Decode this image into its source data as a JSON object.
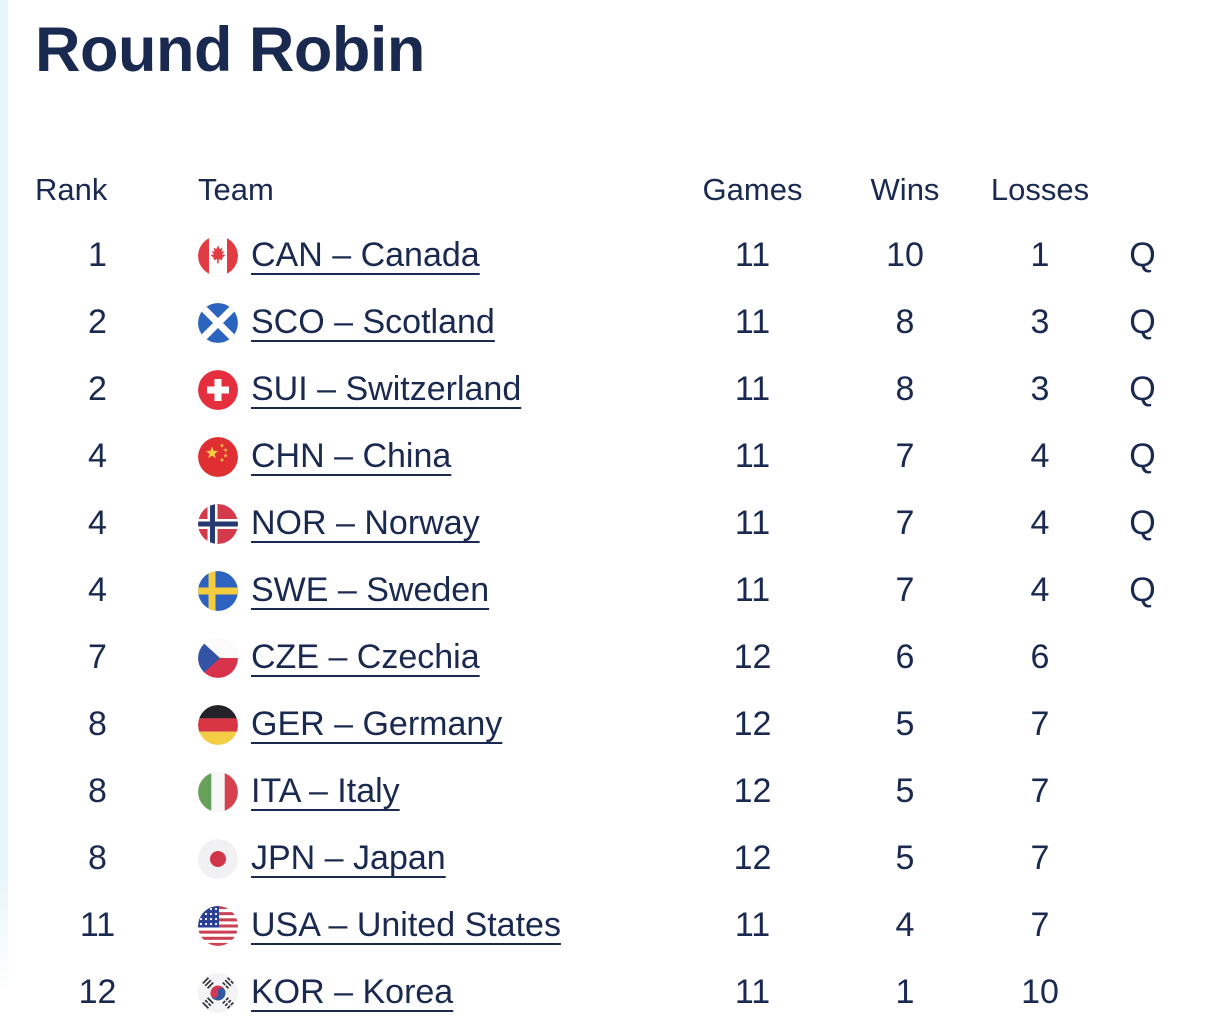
{
  "page": {
    "title": "Round Robin"
  },
  "colors": {
    "text_navy": "#1a2950",
    "left_edge_strip": "#e8f6f9",
    "link_underline": "#1a2950"
  },
  "table": {
    "headers": {
      "rank": "Rank",
      "team": "Team",
      "games": "Games",
      "wins": "Wins",
      "losses": "Losses",
      "qualified": ""
    },
    "qualified_marker": "Q",
    "rows": [
      {
        "rank": "1",
        "flag": "canada",
        "team_label": "CAN – Canada",
        "games": "11",
        "wins": "10",
        "losses": "1",
        "qualified": "Q"
      },
      {
        "rank": "2",
        "flag": "scotland",
        "team_label": "SCO – Scotland",
        "games": "11",
        "wins": "8",
        "losses": "3",
        "qualified": "Q"
      },
      {
        "rank": "2",
        "flag": "switzerland",
        "team_label": "SUI – Switzerland",
        "games": "11",
        "wins": "8",
        "losses": "3",
        "qualified": "Q"
      },
      {
        "rank": "4",
        "flag": "china",
        "team_label": "CHN – China",
        "games": "11",
        "wins": "7",
        "losses": "4",
        "qualified": "Q"
      },
      {
        "rank": "4",
        "flag": "norway",
        "team_label": "NOR – Norway",
        "games": "11",
        "wins": "7",
        "losses": "4",
        "qualified": "Q"
      },
      {
        "rank": "4",
        "flag": "sweden",
        "team_label": "SWE – Sweden",
        "games": "11",
        "wins": "7",
        "losses": "4",
        "qualified": "Q"
      },
      {
        "rank": "7",
        "flag": "czechia",
        "team_label": "CZE – Czechia",
        "games": "12",
        "wins": "6",
        "losses": "6",
        "qualified": ""
      },
      {
        "rank": "8",
        "flag": "germany",
        "team_label": "GER – Germany",
        "games": "12",
        "wins": "5",
        "losses": "7",
        "qualified": ""
      },
      {
        "rank": "8",
        "flag": "italy",
        "team_label": "ITA – Italy",
        "games": "12",
        "wins": "5",
        "losses": "7",
        "qualified": ""
      },
      {
        "rank": "8",
        "flag": "japan",
        "team_label": "JPN – Japan",
        "games": "12",
        "wins": "5",
        "losses": "7",
        "qualified": ""
      },
      {
        "rank": "11",
        "flag": "united-states",
        "team_label": "USA – United States",
        "games": "11",
        "wins": "4",
        "losses": "7",
        "qualified": ""
      },
      {
        "rank": "12",
        "flag": "korea",
        "team_label": "KOR – Korea",
        "games": "11",
        "wins": "1",
        "losses": "10",
        "qualified": ""
      }
    ]
  }
}
